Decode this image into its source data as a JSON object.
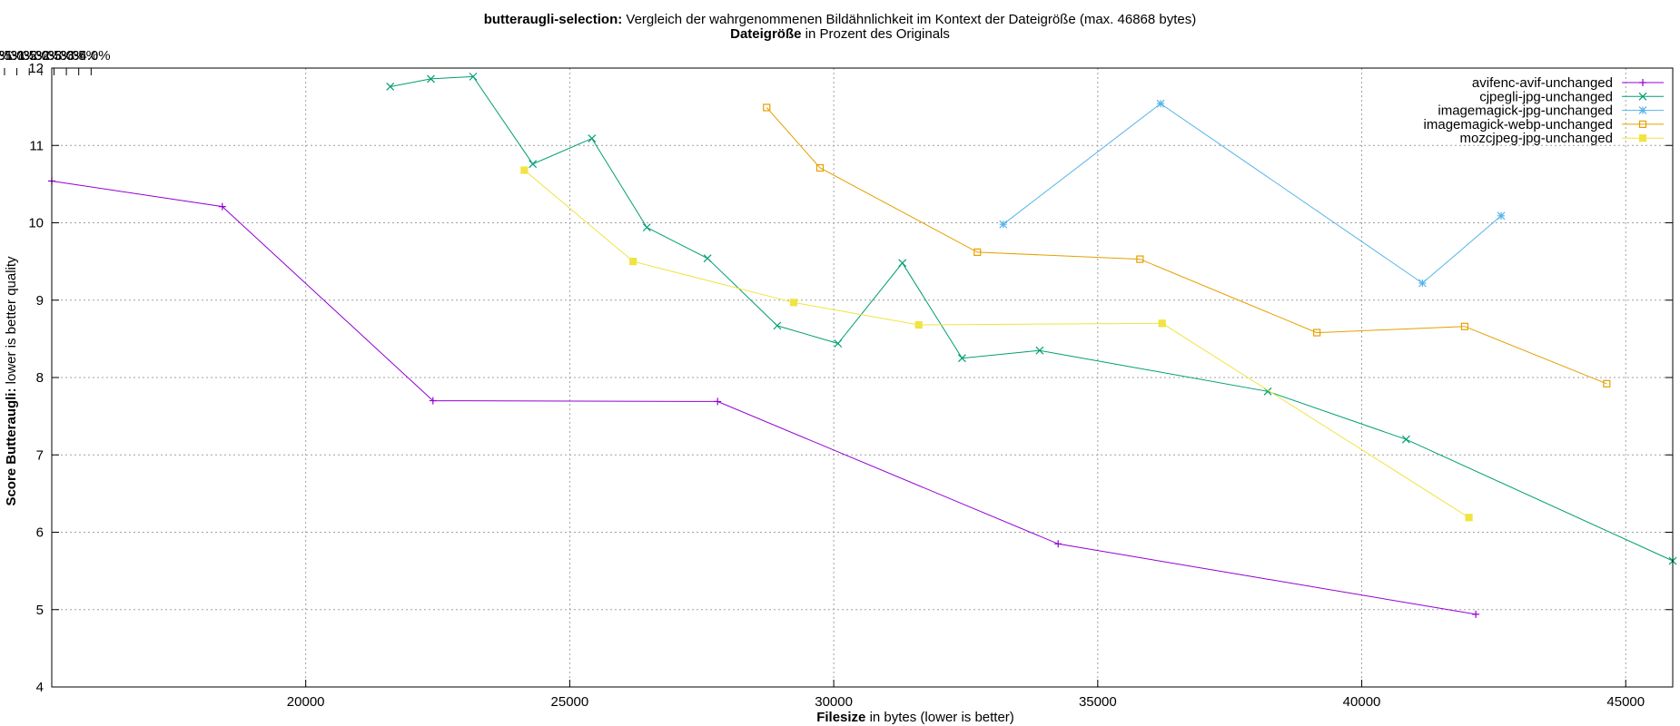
{
  "chart_data": {
    "type": "line",
    "title_bold": "butteraugli-selection:",
    "title_rest": " Vergleich der wahrgenommenen Bildähnlichkeit im Kontext der Dateigröße (max. 46868 bytes)",
    "subtitle_bold": "Dateigröße",
    "subtitle_rest": " in Prozent des Originals",
    "xlabel_bold": "Filesize",
    "xlabel_rest": " in bytes (lower is better)",
    "ylabel_bold": "Score Butteraugli:",
    "ylabel_rest": " lower is better quality",
    "xlim": [
      15190,
      45890
    ],
    "ylim": [
      4,
      12
    ],
    "x_ticks": [
      20000,
      25000,
      30000,
      35000,
      40000,
      45000
    ],
    "y_ticks": [
      4,
      5,
      6,
      7,
      8,
      9,
      10,
      11,
      12
    ],
    "top_ticks": [
      "11.5%",
      "12.0%",
      "12.5%",
      "13.0%",
      "13.5%",
      "14.0%",
      "14.5%",
      "15.0%",
      "15.5%",
      "16.0%",
      "16.5%",
      "17.0%",
      "17.5%",
      "18.0%",
      "18.5%",
      "19.0%",
      "19.5%",
      "20.0%",
      "20.5%",
      "21.0%",
      "21.5%",
      "22.0%",
      "22.5%",
      "23.0%",
      "23.5%",
      "24.0%",
      "24.5%",
      "25.0%",
      "25.5%",
      "26.0%",
      "26.5%",
      "27.0%",
      "27.5%",
      "28.0%",
      "28.5%",
      "29.0%",
      "29.5%",
      "30.0%",
      "30.5%",
      "31.0%",
      "31.5%",
      "32.0%",
      "32.5%",
      "33.0%",
      "33.5%",
      "34.0%"
    ],
    "top_ref_bytes": 46868,
    "grid": true,
    "legend_position": "top-right",
    "series": [
      {
        "name": "avifenc-avif-unchanged",
        "color": "#9400d3",
        "marker": "plus",
        "x": [
          15190,
          18420,
          22410,
          27800,
          34250,
          42160
        ],
        "y": [
          10.54,
          10.21,
          7.7,
          7.69,
          5.85,
          4.94
        ]
      },
      {
        "name": "cjpegli-jpg-unchanged",
        "color": "#009e73",
        "marker": "cross",
        "x": [
          21600,
          22370,
          23170,
          24300,
          25420,
          26460,
          27610,
          28930,
          30080,
          31300,
          32430,
          33900,
          38220,
          40840,
          45890
        ],
        "y": [
          11.76,
          11.86,
          11.89,
          10.76,
          11.09,
          9.94,
          9.54,
          8.67,
          8.44,
          9.48,
          8.25,
          8.35,
          7.82,
          7.2,
          5.63
        ]
      },
      {
        "name": "imagemagick-jpg-unchanged",
        "color": "#56b4e9",
        "marker": "star",
        "x": [
          33210,
          36190,
          41150,
          42640
        ],
        "y": [
          9.98,
          11.54,
          9.22,
          10.09
        ]
      },
      {
        "name": "imagemagick-webp-unchanged",
        "color": "#e69f00",
        "marker": "square",
        "x": [
          28730,
          29740,
          32720,
          35800,
          39150,
          41950,
          44640
        ],
        "y": [
          11.49,
          10.71,
          9.62,
          9.53,
          8.58,
          8.66,
          7.92
        ]
      },
      {
        "name": "mozcjpeg-jpg-unchanged",
        "color": "#f0e442",
        "marker": "filled-square",
        "x": [
          24140,
          26200,
          29240,
          31610,
          36220,
          42030
        ],
        "y": [
          10.68,
          9.5,
          8.97,
          8.68,
          8.7,
          6.19
        ]
      }
    ]
  }
}
